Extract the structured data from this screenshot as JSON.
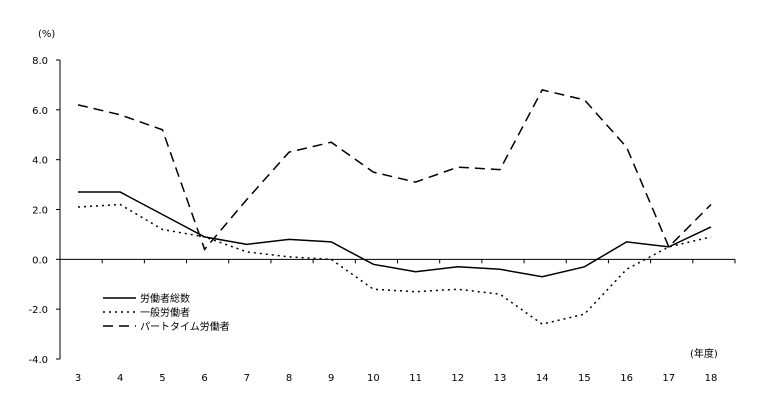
{
  "chart_data": {
    "type": "line",
    "yunit_label": "(%)",
    "xunit_label": "(年度)",
    "ylim": [
      -4,
      8
    ],
    "yticks": [
      "8.0",
      "6.0",
      "4.0",
      "2.0",
      "0.0",
      "-2.0",
      "-4.0"
    ],
    "ytick_values": [
      8,
      6,
      4,
      2,
      0,
      -2,
      -4
    ],
    "categories": [
      "3",
      "4",
      "5",
      "6",
      "7",
      "8",
      "9",
      "10",
      "11",
      "12",
      "13",
      "14",
      "15",
      "16",
      "17",
      "18"
    ],
    "grid": false,
    "legend_placement": "lower-left",
    "series": [
      {
        "name": "労働者総数",
        "style": "solid",
        "values": [
          2.7,
          2.7,
          1.8,
          0.9,
          0.6,
          0.8,
          0.7,
          -0.2,
          -0.5,
          -0.3,
          -0.4,
          -0.7,
          -0.3,
          0.7,
          0.5,
          1.3
        ]
      },
      {
        "name": "一般労働者",
        "style": "dotted",
        "values": [
          2.1,
          2.2,
          1.2,
          0.9,
          0.3,
          0.1,
          0.0,
          -1.2,
          -1.3,
          -1.2,
          -1.4,
          -2.6,
          -2.2,
          -0.4,
          0.5,
          0.9
        ]
      },
      {
        "name": "パートタイム労働者",
        "style": "dashed",
        "values": [
          6.2,
          5.8,
          5.2,
          0.4,
          2.4,
          4.3,
          4.7,
          3.5,
          3.1,
          3.7,
          3.6,
          6.8,
          6.4,
          4.5,
          0.5,
          2.2
        ]
      }
    ],
    "line_color": "#000000"
  }
}
